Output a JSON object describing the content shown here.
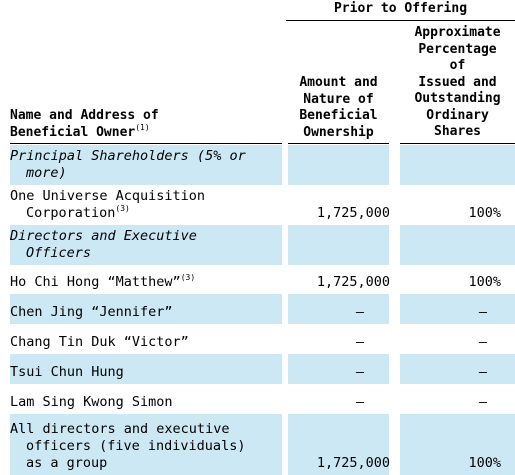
{
  "header": {
    "group_label": "Prior to Offering",
    "col_name_line1": "Name and Address of",
    "col_name_line2": "Beneficial Owner",
    "col_name_note": "(1)",
    "col_amount_lines": [
      "Amount and",
      "Nature of",
      "Beneficial",
      "Ownership"
    ],
    "col_pct_lines": [
      "Approximate",
      "Percentage",
      "of",
      "Issued and",
      "Outstanding",
      "Ordinary",
      "Shares"
    ]
  },
  "rows": [
    {
      "type": "section",
      "lines": [
        "Principal Shareholders (5% or",
        "more)"
      ]
    },
    {
      "type": "data",
      "lines": [
        "One Universe Acquisition",
        "Corporation"
      ],
      "note": "(3)",
      "amount": "1,725,000",
      "pct": "100%"
    },
    {
      "type": "section",
      "lines": [
        "Directors and Executive",
        "Officers"
      ]
    },
    {
      "type": "data",
      "lines": [
        "Ho Chi Hong “Matthew”"
      ],
      "note": "(3)",
      "amount": "1,725,000",
      "pct": "100%"
    },
    {
      "type": "data",
      "lines": [
        "Chen Jing “Jennifer”"
      ],
      "amount": "—",
      "pct": "—"
    },
    {
      "type": "data",
      "lines": [
        "Chang Tin Duk “Victor”"
      ],
      "amount": "—",
      "pct": "—"
    },
    {
      "type": "data",
      "lines": [
        "Tsui Chun Hung"
      ],
      "amount": "—",
      "pct": "—"
    },
    {
      "type": "data",
      "lines": [
        "Lam Sing Kwong Simon"
      ],
      "amount": "—",
      "pct": "—"
    },
    {
      "type": "data",
      "lines": [
        "All directors and executive",
        "officers (five individuals)",
        "as a group"
      ],
      "amount": "1,725,000",
      "pct": "100%"
    }
  ]
}
